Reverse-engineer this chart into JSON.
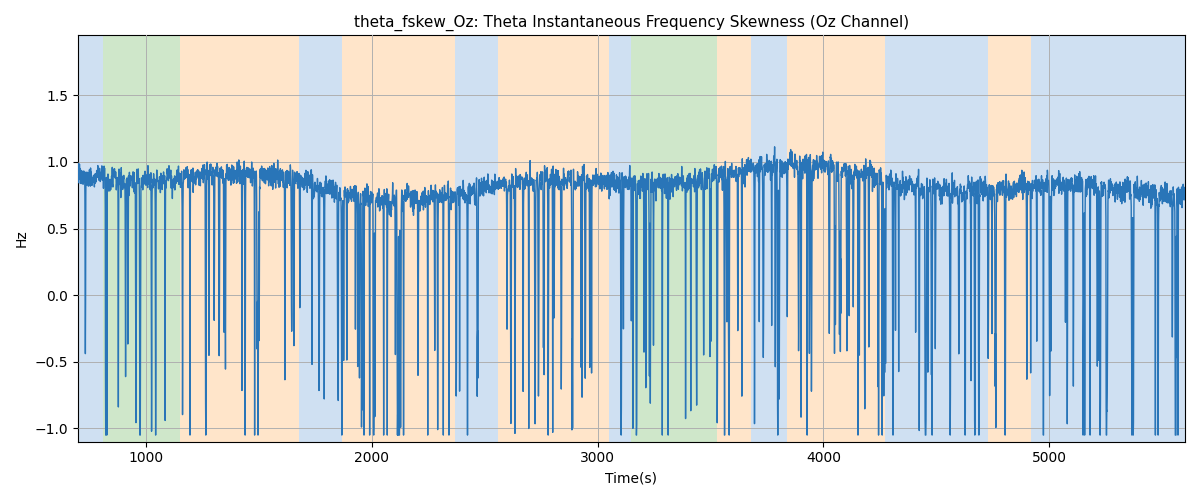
{
  "title": "theta_fskew_Oz: Theta Instantaneous Frequency Skewness (Oz Channel)",
  "xlabel": "Time(s)",
  "ylabel": "Hz",
  "xlim": [
    700,
    5600
  ],
  "ylim": [
    -1.1,
    1.95
  ],
  "line_color": "#2975b8",
  "line_width": 1.0,
  "bg_color": "#ffffff",
  "grid_color": "#b0b0b0",
  "bands": [
    {
      "start": 700,
      "end": 810,
      "color": "#a8c8e8",
      "alpha": 0.55
    },
    {
      "start": 810,
      "end": 1150,
      "color": "#a8d4a0",
      "alpha": 0.55
    },
    {
      "start": 1150,
      "end": 1680,
      "color": "#ffd0a0",
      "alpha": 0.55
    },
    {
      "start": 1680,
      "end": 1870,
      "color": "#a8c8e8",
      "alpha": 0.55
    },
    {
      "start": 1870,
      "end": 2370,
      "color": "#ffd0a0",
      "alpha": 0.55
    },
    {
      "start": 2370,
      "end": 2560,
      "color": "#a8c8e8",
      "alpha": 0.55
    },
    {
      "start": 2560,
      "end": 3050,
      "color": "#ffd0a0",
      "alpha": 0.55
    },
    {
      "start": 3050,
      "end": 3150,
      "color": "#a8c8e8",
      "alpha": 0.55
    },
    {
      "start": 3150,
      "end": 3530,
      "color": "#a8d4a0",
      "alpha": 0.55
    },
    {
      "start": 3530,
      "end": 3680,
      "color": "#ffd0a0",
      "alpha": 0.55
    },
    {
      "start": 3680,
      "end": 3840,
      "color": "#a8c8e8",
      "alpha": 0.55
    },
    {
      "start": 3840,
      "end": 4270,
      "color": "#ffd0a0",
      "alpha": 0.55
    },
    {
      "start": 4270,
      "end": 4730,
      "color": "#a8c8e8",
      "alpha": 0.55
    },
    {
      "start": 4730,
      "end": 4920,
      "color": "#ffd0a0",
      "alpha": 0.55
    },
    {
      "start": 4920,
      "end": 5600,
      "color": "#a8c8e8",
      "alpha": 0.55
    }
  ],
  "seed": 7,
  "n_points": 4900,
  "t_start": 700,
  "t_end": 5600
}
